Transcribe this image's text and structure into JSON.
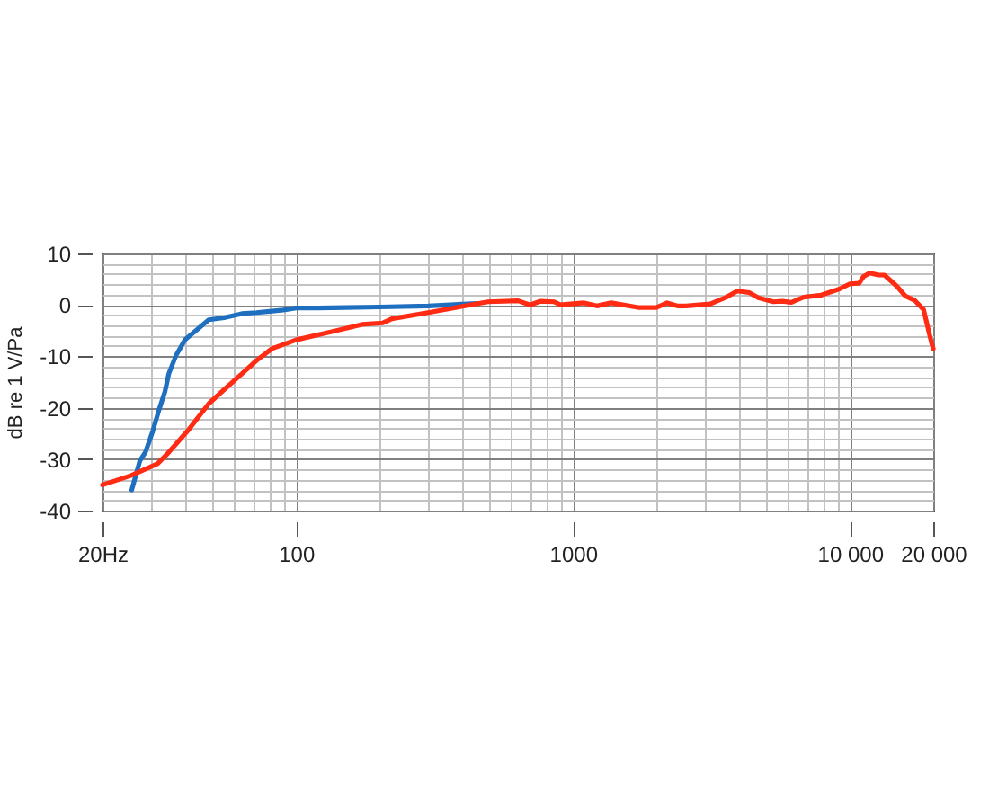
{
  "chart_data": {
    "type": "line",
    "ylabel": "dB re 1 V/Pa",
    "log": "x",
    "xlim": [
      20,
      20000
    ],
    "ylim": [
      -40,
      10
    ],
    "xticks": [
      {
        "value": 20,
        "label": "20Hz"
      },
      100,
      1000,
      {
        "value": 10000,
        "label": "10 000"
      },
      {
        "value": 20000,
        "label": "20 000"
      }
    ],
    "yticks": [
      -40,
      -30,
      -20,
      -10,
      0,
      10
    ],
    "grid": true,
    "series": [
      {
        "color": "#1f6fc0",
        "x": [
          25.5,
          27.3,
          28.6,
          30.4,
          32,
          33.6,
          34.7,
          36.8,
          39.7,
          48.4,
          55,
          63.7,
          72,
          82,
          90,
          100,
          120,
          150,
          200,
          300,
          450
        ],
        "values": [
          -36,
          -30.3,
          -28.6,
          -24.5,
          -20.4,
          -16.9,
          -13.4,
          -9.9,
          -6.8,
          -2.9,
          -2.5,
          -1.7,
          -1.5,
          -1.2,
          -1,
          -0.6,
          -0.6,
          -0.5,
          -0.4,
          -0.2,
          0.3
        ]
      },
      {
        "color": "#ff2b13",
        "x": [
          20,
          25.3,
          31.6,
          34.1,
          40.6,
          48.4,
          56,
          63.7,
          72,
          81.8,
          100,
          134.6,
          173,
          206,
          222,
          300,
          425,
          493,
          634,
          700,
          760,
          855,
          900,
          1097,
          1220,
          1374,
          1719,
          2000,
          2187,
          2380,
          2560,
          3130,
          3550,
          3920,
          4330,
          4670,
          5290,
          5700,
          6150,
          6800,
          7890,
          9170,
          10000,
          10800,
          11190,
          11780,
          12690,
          13330,
          14730,
          15880,
          17120,
          18450,
          19180,
          19700,
          20000
        ],
        "values": [
          -35,
          -33.2,
          -30.9,
          -29.1,
          -24.5,
          -19.2,
          -16.1,
          -13.4,
          -10.8,
          -8.5,
          -6.8,
          -5.2,
          -3.8,
          -3.5,
          -2.7,
          -1.5,
          0,
          0.6,
          0.8,
          0,
          0.7,
          0.6,
          0,
          0.4,
          -0.2,
          0.4,
          -0.5,
          -0.5,
          0.4,
          -0.2,
          -0.2,
          0.2,
          1.4,
          2.7,
          2.4,
          1.4,
          0.6,
          0.7,
          0.5,
          1.5,
          1.9,
          3.1,
          4.1,
          4.2,
          5.5,
          6.2,
          5.8,
          5.8,
          3.7,
          1.7,
          0.9,
          -0.9,
          -4.7,
          -7.3,
          -8.5
        ]
      }
    ]
  }
}
